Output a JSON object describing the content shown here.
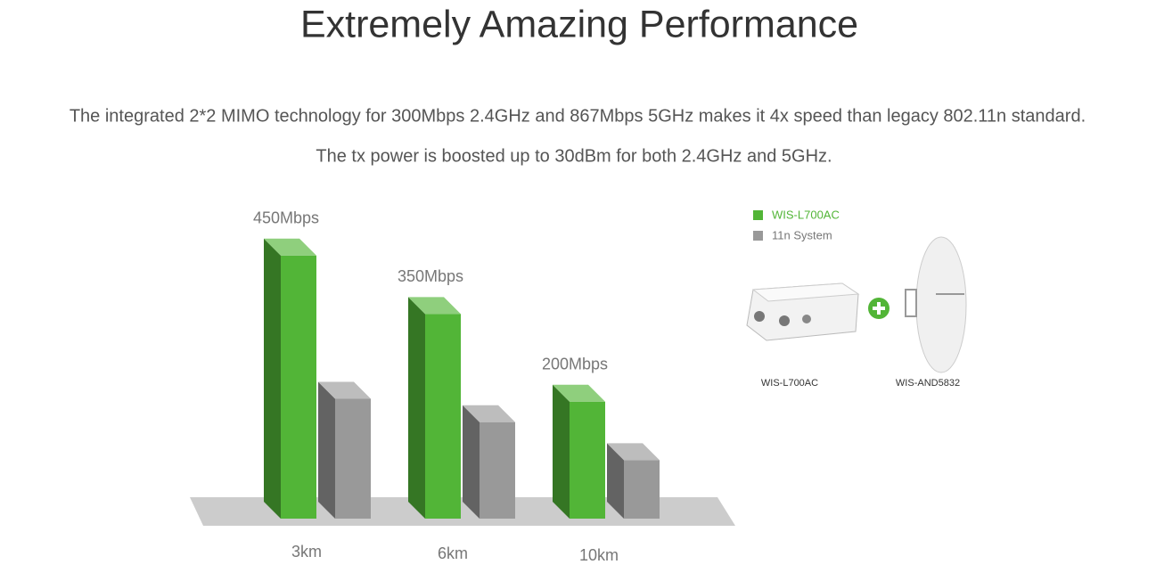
{
  "header": {
    "title": "Extremely Amazing Performance",
    "paragraphs": [
      "The integrated 2*2 MIMO technology for 300Mbps 2.4GHz and 867Mbps 5GHz makes it 4x speed than legacy 802.11n standard.",
      "The tx power is boosted up to 30dBm for both 2.4GHz and 5GHz."
    ]
  },
  "chart_data": {
    "type": "bar",
    "categories": [
      "3km",
      "6km",
      "10km"
    ],
    "series": [
      {
        "name": "WIS-L700AC",
        "color": "#52b537",
        "values": [
          450,
          350,
          200
        ],
        "value_labels": [
          "450Mbps",
          "350Mbps",
          "200Mbps"
        ]
      },
      {
        "name": "11n System",
        "color": "#999999",
        "values": [
          205,
          165,
          100
        ]
      }
    ]
  },
  "products": [
    {
      "label": "WIS-L700AC"
    },
    {
      "label": "WIS-AND5832"
    }
  ]
}
